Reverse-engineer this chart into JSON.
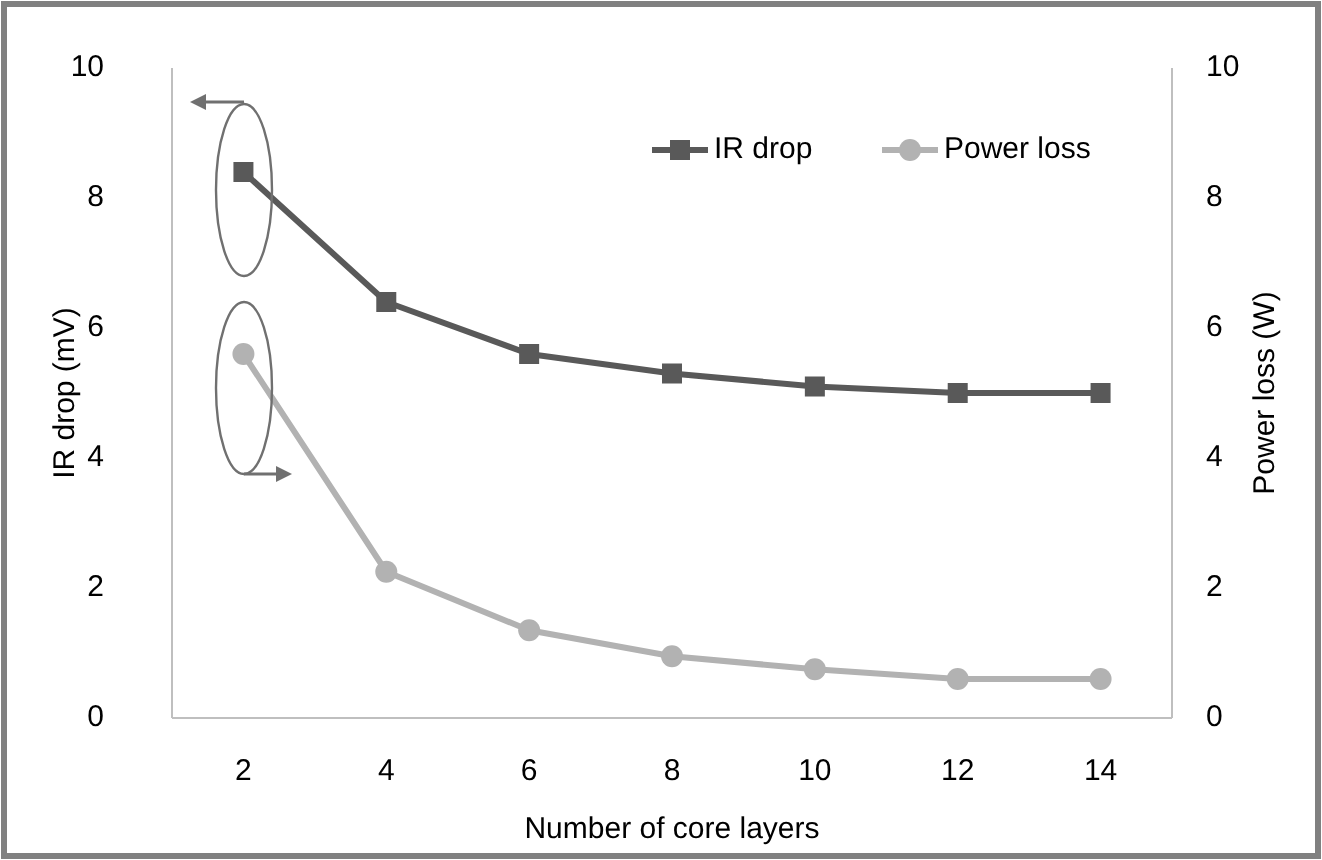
{
  "chart_data": {
    "type": "line",
    "xlabel": "Number of core layers",
    "ylabel": "IR drop (mV)",
    "y2label": "Power loss (W)",
    "categories": [
      "2",
      "4",
      "6",
      "8",
      "10",
      "12",
      "14"
    ],
    "series": [
      {
        "name": "IR drop",
        "color": "#595959",
        "marker": "square",
        "values": [
          8.4,
          6.4,
          5.6,
          5.3,
          5.1,
          5.0,
          5.0
        ]
      },
      {
        "name": "Power loss",
        "color": "#b2b2b2",
        "marker": "circle",
        "axis": "y2",
        "values": [
          5.6,
          2.25,
          1.35,
          0.95,
          0.75,
          0.6,
          0.6
        ]
      }
    ],
    "ylim": [
      0,
      10
    ],
    "yticks": [
      0,
      2,
      4,
      6,
      8,
      10
    ],
    "y2lim": [
      0,
      10
    ],
    "y2ticks": [
      0,
      2,
      4,
      6,
      8,
      10
    ],
    "grid": false,
    "legend": "top right"
  }
}
